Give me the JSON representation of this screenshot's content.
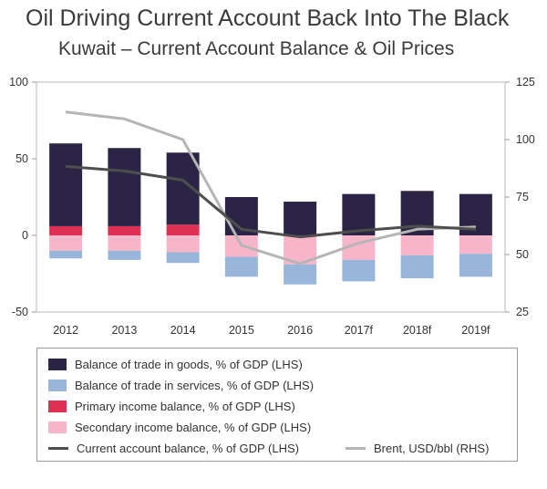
{
  "header": {
    "title": "Oil Driving Current Account Back Into The Black",
    "subtitle": "Kuwait – Current Account Balance & Oil Prices"
  },
  "colors": {
    "goods": "#2c2445",
    "services": "#98b6da",
    "primary": "#de3152",
    "secondary": "#f7b5c9",
    "current_account": "#4e4e4e",
    "brent": "#b5b5b5"
  },
  "chart_data": {
    "type": "bar",
    "categories": [
      "2012",
      "2013",
      "2014",
      "2015",
      "2016",
      "2017f",
      "2018f",
      "2019f"
    ],
    "series": [
      {
        "name": "Balance of trade in goods, % of GDP (LHS)",
        "type": "bar",
        "axis": "left",
        "values": [
          54,
          51,
          47,
          25,
          22,
          27,
          29,
          27
        ]
      },
      {
        "name": "Balance of trade in services, % of GDP (LHS)",
        "type": "bar",
        "axis": "left",
        "values": [
          -5,
          -6,
          -7,
          -13,
          -13,
          -14,
          -15,
          -15
        ]
      },
      {
        "name": "Primary income balance, % of GDP (LHS)",
        "type": "bar",
        "axis": "left",
        "values": [
          6,
          6,
          7,
          0,
          0,
          0,
          0,
          0
        ]
      },
      {
        "name": "Secondary income balance, % of GDP (LHS)",
        "type": "bar",
        "axis": "left",
        "values": [
          -10,
          -10,
          -11,
          -14,
          -19,
          -16,
          -13,
          -12
        ]
      },
      {
        "name": "Current account balance, % of GDP (LHS)",
        "type": "line",
        "axis": "left",
        "values": [
          45,
          42,
          36,
          4,
          -1,
          3,
          6,
          4
        ]
      },
      {
        "name": "Brent, USD/bbl (RHS)",
        "type": "line",
        "axis": "right",
        "values": [
          112,
          109,
          100,
          54,
          46,
          55,
          61,
          62
        ]
      }
    ],
    "y_left": {
      "ticks": [
        "100",
        "50",
        "0",
        "-50"
      ],
      "lim": [
        -50,
        100
      ]
    },
    "y_right": {
      "ticks": [
        "125",
        "100",
        "75",
        "50",
        "25"
      ],
      "lim": [
        25,
        125
      ]
    },
    "grid": false,
    "legend_position": "bottom"
  }
}
